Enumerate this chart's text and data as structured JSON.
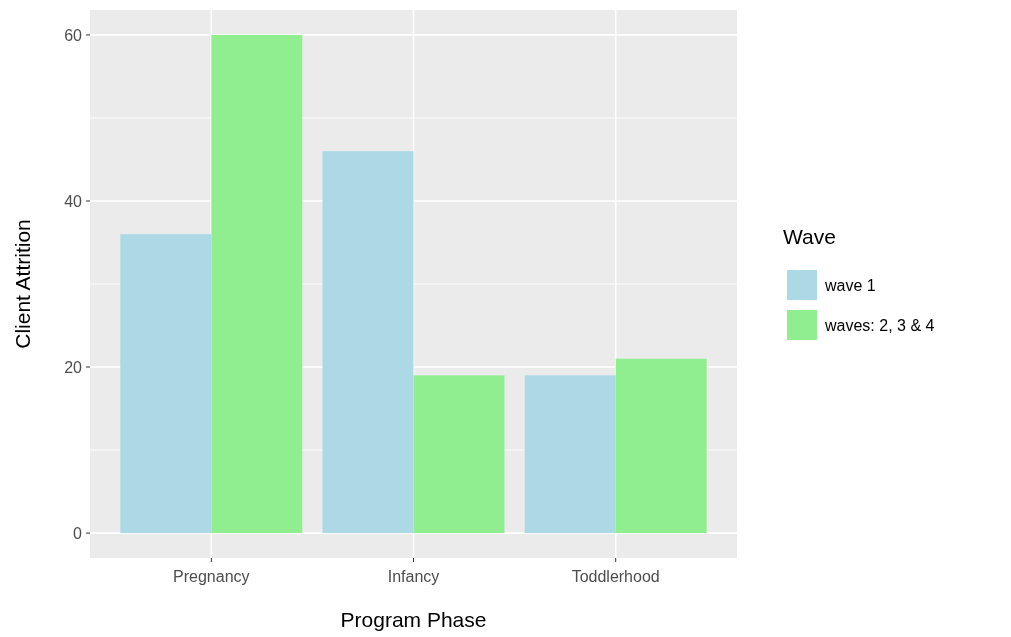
{
  "chart_data": {
    "type": "bar",
    "xlabel": "Program Phase",
    "ylabel": "Client Attrition",
    "legend_title": "Wave",
    "categories": [
      "Pregnancy",
      "Infancy",
      "Toddlerhood"
    ],
    "series": [
      {
        "name": "wave 1",
        "color": "#add8e6",
        "values": [
          36,
          46,
          19
        ]
      },
      {
        "name": "waves: 2, 3 & 4",
        "color": "#90ee90",
        "values": [
          60,
          19,
          21
        ]
      }
    ],
    "ylim": [
      -3,
      63
    ],
    "yticks": [
      0,
      20,
      40,
      60
    ],
    "grid": true,
    "legend": "right"
  }
}
